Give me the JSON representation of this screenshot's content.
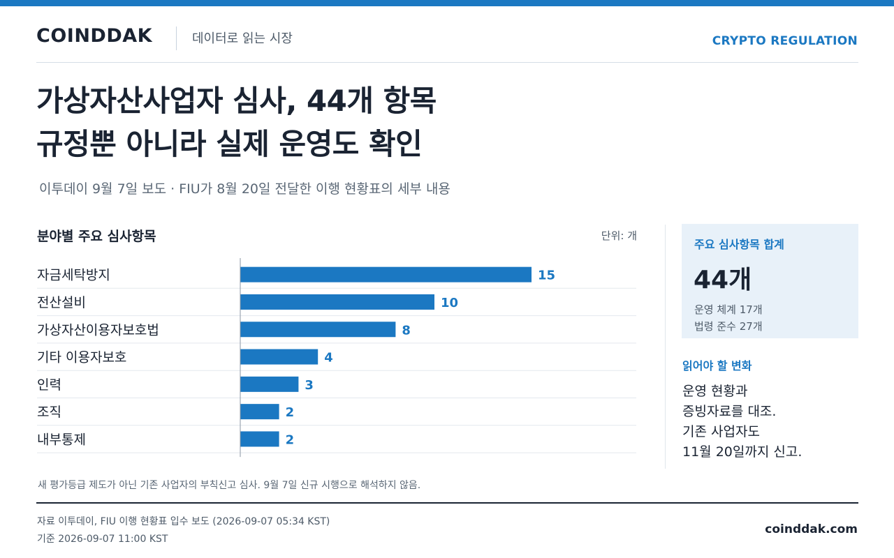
{
  "brand": {
    "name": "COINDDAK",
    "tagline": "데이터로 읽는 시장",
    "section": "CRYPTO REGULATION",
    "site": "coinddak.com"
  },
  "headline": {
    "line1": "가상자산사업자 심사, 44개 항목",
    "line2": "규정뿐 아니라 실제 운영도 확인"
  },
  "subtitle": "이투데이 9월 7일 보도 · FIU가 8월 20일 전달한 이행 현황표의 세부 내용",
  "chart_data": {
    "type": "bar",
    "orientation": "horizontal",
    "title": "분야별 주요 심사항목",
    "unit": "단위: 개",
    "categories": [
      "자금세탁방지",
      "전산설비",
      "가상자산이용자보호법",
      "기타 이용자보호",
      "인력",
      "조직",
      "내부통제"
    ],
    "values": [
      15,
      10,
      8,
      4,
      3,
      2,
      2
    ],
    "xlim": [
      0,
      15
    ],
    "bar_color": "#1b78c2",
    "grid": false
  },
  "summary": {
    "label": "주요 심사항목 합계",
    "total": "44개",
    "line1": "운영 체계 17개",
    "line2": "법령 준수 27개"
  },
  "change": {
    "label": "읽어야 할 변화",
    "lines": [
      "운영 현황과",
      "증빙자료를 대조.",
      "기존 사업자도",
      "11월 20일까지 신고."
    ]
  },
  "footnote": "새 평가등급 제도가 아닌 기존 사업자의 부칙신고 심사. 9월 7일 신규 시행으로 해석하지 않음.",
  "source": {
    "line1": "자료  이투데이, FIU 이행 현황표 입수 보도 (2026-09-07 05:34 KST)",
    "line2": "기준  2026-09-07 11:00 KST"
  },
  "colors": {
    "accent": "#1b78c2",
    "text": "#1a2332",
    "summary_bg": "#e8f1f9"
  }
}
